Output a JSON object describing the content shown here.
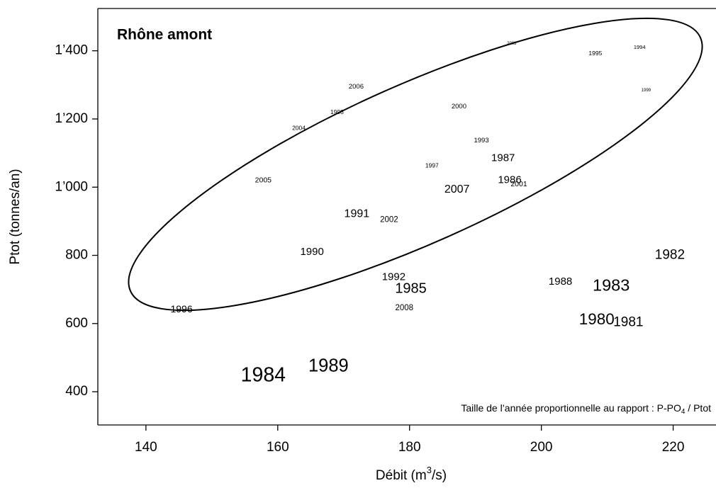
{
  "chart_data": {
    "type": "scatter",
    "title": "Rhône amont",
    "x_label": "Débit  (m",
    "x_label_sup": "3",
    "x_label_end": "/s)",
    "y_label": "Ptot  (tonnes/an)",
    "annotation": "Taille de l’année proportionnelle au rapport : P-PO",
    "annotation_sub": "4",
    "annotation_end": " / Ptot",
    "xlim": [
      132.7,
      226.5
    ],
    "ylim": [
      302.5,
      1524
    ],
    "xticks": [
      140,
      160,
      180,
      200,
      220
    ],
    "yticks": [
      400,
      600,
      800,
      {
        "value": 1000,
        "label": "1’000"
      },
      {
        "value": 1200,
        "label": "1’200"
      },
      {
        "value": 1400,
        "label": "1’400"
      }
    ],
    "color": "#000000",
    "labels": [
      "2003",
      "1995",
      "1994",
      "1999",
      "2006",
      "1998",
      "2004",
      "2000",
      "1993",
      "1987",
      "1997",
      "1986",
      "2001",
      "2007",
      "2005",
      "1991",
      "2002",
      "1990",
      "1992",
      "1985",
      "2008",
      "1996",
      "1988",
      "1983",
      "1982",
      "1980",
      "1981",
      "1984",
      "1989"
    ],
    "x": [
      195.5,
      208.2,
      214.9,
      215.9,
      171.9,
      169.0,
      163.2,
      187.5,
      190.9,
      194.2,
      183.4,
      195.2,
      196.6,
      187.2,
      157.8,
      172.0,
      176.9,
      165.2,
      177.6,
      180.2,
      179.2,
      145.4,
      202.9,
      210.6,
      219.5,
      208.4,
      213.2,
      157.8,
      167.7
    ],
    "y": [
      1421,
      1392,
      1410,
      1284,
      1294,
      1219,
      1172,
      1236,
      1137,
      1085,
      1062,
      1020,
      1008,
      993,
      1020,
      921,
      904,
      809,
      736,
      701,
      645,
      641,
      722,
      709,
      800,
      610,
      603,
      446,
      473
    ],
    "sizes": [
      0.12,
      0.17,
      0.15,
      0.12,
      0.19,
      0.17,
      0.17,
      0.19,
      0.19,
      0.3,
      0.17,
      0.3,
      0.21,
      0.32,
      0.21,
      0.32,
      0.23,
      0.3,
      0.3,
      0.4,
      0.23,
      0.28,
      0.3,
      0.47,
      0.38,
      0.45,
      0.38,
      0.57,
      0.51
    ]
  }
}
